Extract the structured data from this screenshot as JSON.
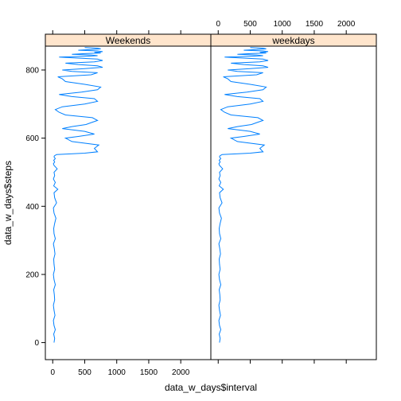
{
  "chart_data": {
    "type": "line",
    "xlabel": "data_w_days$interval",
    "ylabel": "data_w_days$steps",
    "xlim": [
      -115,
      2470
    ],
    "ylim": [
      -50,
      870
    ],
    "x_ticks": [
      0,
      500,
      1000,
      1500,
      2000
    ],
    "y_ticks": [
      0,
      200,
      400,
      600,
      800
    ],
    "line_color": "#0080ff",
    "strip_color": "#ffe5cc",
    "panels": [
      {
        "name": "Weekends",
        "x_axis_side": "bottom",
        "series": [
          {
            "x": [
              20,
              30,
              15,
              40,
              20,
              10,
              35,
              20,
              10,
              30,
              25,
              15,
              40,
              20,
              10,
              30,
              20,
              15,
              35,
              25,
              10,
              40,
              20,
              15,
              30,
              50,
              20,
              10,
              60,
              30,
              20,
              80,
              15,
              40,
              10,
              30,
              20,
              70,
              20,
              10,
              30,
              15,
              40,
              20,
              25,
              60,
              500,
              700,
              650,
              720,
              300,
              200,
              400,
              650,
              500,
              150,
              300,
              520,
              610,
              700,
              620,
              200,
              100,
              40,
              150,
              500,
              700,
              650,
              300,
              100,
              450,
              700,
              750,
              500,
              200,
              150,
              80,
              600,
              700,
              300,
              150,
              500,
              780,
              700,
              400,
              200,
              650,
              780,
              700,
              300,
              100,
              500,
              700,
              600,
              300,
              500,
              750,
              650,
              780,
              700,
              400,
              600,
              750,
              700,
              500
            ],
            "y": [
              0,
              12,
              25,
              38,
              50,
              65,
              80,
              95,
              110,
              125,
              140,
              155,
              170,
              185,
              200,
              215,
              230,
              245,
              260,
              275,
              290,
              305,
              320,
              335,
              350,
              365,
              380,
              395,
              410,
              425,
              440,
              450,
              460,
              470,
              480,
              490,
              500,
              510,
              520,
              525,
              530,
              535,
              540,
              545,
              548,
              552,
              556,
              560,
              570,
              580,
              590,
              600,
              605,
              612,
              620,
              628,
              634,
              640,
              646,
              652,
              660,
              668,
              676,
              684,
              692,
              700,
              708,
              716,
              722,
              728,
              735,
              742,
              750,
              758,
              766,
              774,
              780,
              786,
              792,
              796,
              800,
              804,
              808,
              812,
              816,
              820,
              824,
              828,
              832,
              836,
              838,
              840,
              842,
              844,
              846,
              848,
              850,
              852,
              854,
              856,
              858,
              860,
              862,
              864,
              866
            ]
          }
        ]
      },
      {
        "name": "weekdays",
        "x_axis_side": "top",
        "series": [
          {
            "x": [
              20,
              30,
              15,
              40,
              20,
              10,
              35,
              20,
              10,
              30,
              25,
              15,
              40,
              20,
              10,
              30,
              20,
              15,
              35,
              25,
              10,
              40,
              20,
              15,
              30,
              50,
              20,
              10,
              60,
              30,
              20,
              80,
              15,
              40,
              10,
              30,
              20,
              70,
              20,
              10,
              30,
              15,
              40,
              20,
              25,
              60,
              500,
              700,
              650,
              720,
              300,
              200,
              400,
              650,
              500,
              150,
              300,
              520,
              610,
              700,
              620,
              200,
              100,
              40,
              150,
              500,
              700,
              650,
              300,
              100,
              450,
              700,
              750,
              500,
              200,
              150,
              80,
              600,
              700,
              300,
              150,
              500,
              780,
              700,
              400,
              200,
              650,
              780,
              700,
              300,
              100,
              500,
              700,
              600,
              300,
              500,
              750,
              650,
              780,
              700,
              400,
              600,
              750,
              700,
              500
            ],
            "y": [
              0,
              12,
              25,
              38,
              50,
              65,
              80,
              95,
              110,
              125,
              140,
              155,
              170,
              185,
              200,
              215,
              230,
              245,
              260,
              275,
              290,
              305,
              320,
              335,
              350,
              365,
              380,
              395,
              410,
              425,
              440,
              450,
              460,
              470,
              480,
              490,
              500,
              510,
              520,
              525,
              530,
              535,
              540,
              545,
              548,
              552,
              556,
              560,
              570,
              580,
              590,
              600,
              605,
              612,
              620,
              628,
              634,
              640,
              646,
              652,
              660,
              668,
              676,
              684,
              692,
              700,
              708,
              716,
              722,
              728,
              735,
              742,
              750,
              758,
              766,
              774,
              780,
              786,
              792,
              796,
              800,
              804,
              808,
              812,
              816,
              820,
              824,
              828,
              832,
              836,
              838,
              840,
              842,
              844,
              846,
              848,
              850,
              852,
              854,
              856,
              858,
              860,
              862,
              864,
              866
            ]
          }
        ]
      }
    ]
  }
}
